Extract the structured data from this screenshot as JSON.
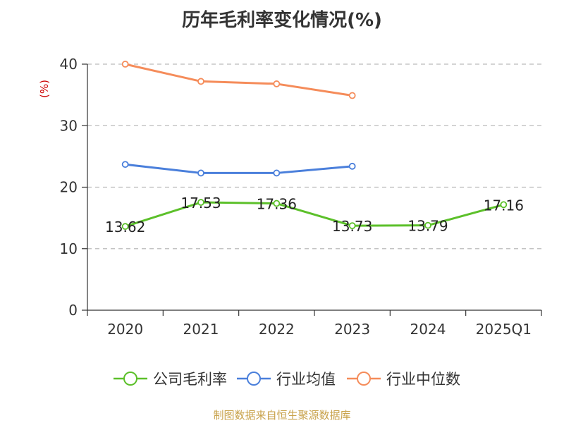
{
  "title": "历年毛利率变化情况(%)",
  "source": "制图数据来自恒生聚源数据库",
  "chart_data": {
    "type": "line",
    "title": "历年毛利率变化情况(%)",
    "ylabel": "(%)",
    "xlabel": "",
    "categories": [
      "2020",
      "2021",
      "2022",
      "2023",
      "2024",
      "2025Q1"
    ],
    "ylim": [
      0,
      40
    ],
    "yticks": [
      0,
      10,
      20,
      30,
      40
    ],
    "grid": true,
    "legend": "bottom",
    "series": [
      {
        "name": "公司毛利率",
        "color": "#5cc02a",
        "values": [
          13.62,
          17.53,
          17.36,
          13.73,
          13.79,
          17.16
        ],
        "labels": [
          "13.62",
          "17.53",
          "17.36",
          "13.73",
          "13.79",
          "17.16"
        ]
      },
      {
        "name": "行业均值",
        "color": "#4a7fdb",
        "values": [
          23.7,
          22.3,
          22.3,
          23.4,
          null,
          null
        ],
        "labels": []
      },
      {
        "name": "行业中位数",
        "color": "#f58c5a",
        "values": [
          40.0,
          37.2,
          36.8,
          34.9,
          null,
          null
        ],
        "labels": []
      }
    ]
  },
  "colors": {
    "title": "#333333",
    "axis": "#333333",
    "ylabel": "#cc0000",
    "grid": "#bbbbbb",
    "source": "#c8a24a"
  }
}
